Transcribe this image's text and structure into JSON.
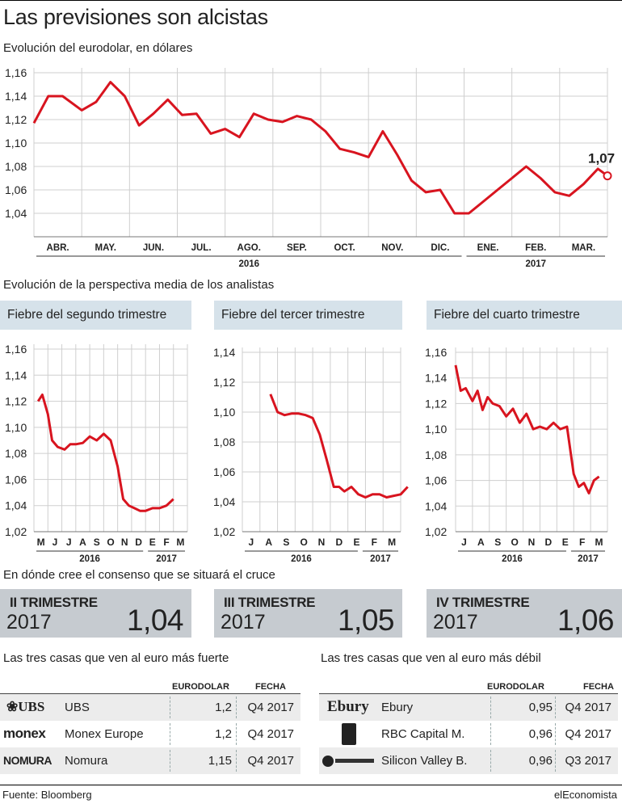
{
  "header": {
    "title": "Las previsiones son alcistas",
    "subtitle_main": "Evolución del eurodolar, en dólares",
    "subtitle_analysts": "Evolución de la perspectiva media de los analistas",
    "subtitle_consensus": "En dónde cree el consenso que se situará el cruce",
    "subtitle_strong": "Las tres casas que ven al euro más fuerte",
    "subtitle_weak": "Las tres casas que ven al euro más débil"
  },
  "colors": {
    "line": "#d8141f",
    "grid": "#bbbbbb",
    "panel": "#d6e2ea",
    "box": "#c6cbd0"
  },
  "chart_data": [
    {
      "type": "line",
      "title": "Evolución del eurodolar, en dólares",
      "ylim": [
        1.02,
        1.16
      ],
      "yticks": [
        "1,16",
        "1,14",
        "1,12",
        "1,10",
        "1,08",
        "1,06",
        "1,04"
      ],
      "month_labels": [
        "ABR.",
        "MAY.",
        "JUN.",
        "JUL.",
        "AGO.",
        "SEP.",
        "OCT.",
        "NOV.",
        "DIC.",
        "ENE.",
        "FEB.",
        "MAR."
      ],
      "year_labels": [
        "2016",
        "2017"
      ],
      "last_label": "1,07",
      "x": [
        0,
        0.3,
        0.6,
        1.0,
        1.3,
        1.6,
        1.9,
        2.2,
        2.5,
        2.8,
        3.1,
        3.4,
        3.7,
        4.0,
        4.3,
        4.6,
        4.9,
        5.2,
        5.5,
        5.8,
        6.1,
        6.4,
        6.7,
        7.0,
        7.3,
        7.6,
        7.9,
        8.2,
        8.5,
        8.8,
        9.1,
        9.4,
        9.7,
        10.0,
        10.3,
        10.6,
        10.9,
        11.2,
        11.5,
        11.8,
        12.0
      ],
      "y": [
        1.117,
        1.14,
        1.14,
        1.128,
        1.135,
        1.152,
        1.14,
        1.115,
        1.125,
        1.137,
        1.124,
        1.125,
        1.108,
        1.112,
        1.105,
        1.125,
        1.12,
        1.118,
        1.123,
        1.12,
        1.11,
        1.095,
        1.092,
        1.088,
        1.11,
        1.09,
        1.068,
        1.058,
        1.06,
        1.04,
        1.04,
        1.05,
        1.06,
        1.07,
        1.08,
        1.07,
        1.058,
        1.055,
        1.065,
        1.078,
        1.072
      ],
      "series": [
        {
          "name": "Eurodolar"
        }
      ]
    },
    {
      "type": "line",
      "title": "Fiebre del segundo trimestre",
      "ylim": [
        1.02,
        1.16
      ],
      "yticks": [
        "1,16",
        "1,14",
        "1,12",
        "1,10",
        "1,08",
        "1,06",
        "1,04",
        "1,02"
      ],
      "month_labels": [
        "M",
        "J",
        "J",
        "A",
        "S",
        "O",
        "N",
        "D",
        "E",
        "F",
        "M"
      ],
      "year_labels": [
        "2016",
        "2017"
      ],
      "x": [
        0.3,
        0.6,
        1.0,
        1.3,
        1.7,
        2.2,
        2.6,
        3.0,
        3.5,
        4.0,
        4.5,
        5.0,
        5.5,
        6.0,
        6.4,
        6.8,
        7.2,
        7.6,
        8.0,
        8.5,
        9.0,
        9.5,
        10.0
      ],
      "y": [
        1.12,
        1.125,
        1.11,
        1.09,
        1.085,
        1.083,
        1.087,
        1.087,
        1.088,
        1.093,
        1.09,
        1.095,
        1.09,
        1.07,
        1.045,
        1.04,
        1.038,
        1.036,
        1.036,
        1.038,
        1.038,
        1.04,
        1.045
      ]
    },
    {
      "type": "line",
      "title": "Fiebre del tercer trimestre",
      "ylim": [
        1.02,
        1.14
      ],
      "yticks": [
        "1,14",
        "1,12",
        "1,10",
        "1,08",
        "1,06",
        "1,04",
        "1,02"
      ],
      "month_labels": [
        "J",
        "A",
        "S",
        "O",
        "N",
        "D",
        "E",
        "F",
        "M"
      ],
      "year_labels": [
        "2016",
        "2017"
      ],
      "x": [
        1.6,
        2.0,
        2.4,
        2.8,
        3.2,
        3.6,
        4.0,
        4.4,
        4.8,
        5.2,
        5.5,
        5.8,
        6.2,
        6.6,
        7.0,
        7.4,
        7.8,
        8.2,
        8.6,
        9.0,
        9.4
      ],
      "y": [
        1.112,
        1.1,
        1.098,
        1.099,
        1.099,
        1.098,
        1.096,
        1.085,
        1.068,
        1.05,
        1.05,
        1.047,
        1.05,
        1.045,
        1.043,
        1.045,
        1.045,
        1.043,
        1.044,
        1.045,
        1.05
      ]
    },
    {
      "type": "line",
      "title": "Fiebre del cuarto trimestre",
      "ylim": [
        1.02,
        1.16
      ],
      "yticks": [
        "1,16",
        "1,14",
        "1,12",
        "1,10",
        "1,08",
        "1,06",
        "1,04",
        "1,02"
      ],
      "month_labels": [
        "J",
        "A",
        "S",
        "O",
        "N",
        "D",
        "E",
        "F",
        "M"
      ],
      "year_labels": [
        "2016",
        "2017"
      ],
      "x": [
        0,
        0.3,
        0.6,
        1.0,
        1.3,
        1.6,
        1.9,
        2.2,
        2.6,
        3.0,
        3.4,
        3.8,
        4.2,
        4.6,
        5.0,
        5.4,
        5.8,
        6.2,
        6.6,
        7.0,
        7.3,
        7.6,
        7.9,
        8.2,
        8.5
      ],
      "y": [
        1.15,
        1.13,
        1.132,
        1.122,
        1.13,
        1.115,
        1.125,
        1.12,
        1.118,
        1.11,
        1.116,
        1.105,
        1.112,
        1.1,
        1.102,
        1.1,
        1.105,
        1.1,
        1.102,
        1.065,
        1.055,
        1.058,
        1.05,
        1.06,
        1.063
      ]
    }
  ],
  "panels": {
    "q2": "Fiebre del segundo trimestre",
    "q3": "Fiebre del tercer trimestre",
    "q4": "Fiebre del cuarto trimestre"
  },
  "consensus": [
    {
      "label": "II TRIMESTRE",
      "year": "2017",
      "value": "1,04"
    },
    {
      "label": "III TRIMESTRE",
      "year": "2017",
      "value": "1,05"
    },
    {
      "label": "IV TRIMESTRE",
      "year": "2017",
      "value": "1,06"
    }
  ],
  "tables": {
    "col_eurodolar": "EURODOLAR",
    "col_fecha": "FECHA",
    "strong": [
      {
        "logo": "UBS",
        "name": "UBS",
        "value": "1,2",
        "date": "Q4 2017"
      },
      {
        "logo": "monex",
        "name": "Monex Europe",
        "value": "1,2",
        "date": "Q4 2017"
      },
      {
        "logo": "NOMURA",
        "name": "Nomura",
        "value": "1,15",
        "date": "Q4 2017"
      }
    ],
    "weak": [
      {
        "logo": "Ebury",
        "name": "Ebury",
        "value": "0,95",
        "date": "Q4 2017"
      },
      {
        "logo": "",
        "name": "RBC Capital M.",
        "value": "0,96",
        "date": "Q4 2017"
      },
      {
        "logo": "",
        "name": "Silicon Valley B.",
        "value": "0,96",
        "date": "Q3 2017"
      }
    ]
  },
  "footer": {
    "source": "Fuente: Bloomberg",
    "brand": "elEconomista"
  }
}
